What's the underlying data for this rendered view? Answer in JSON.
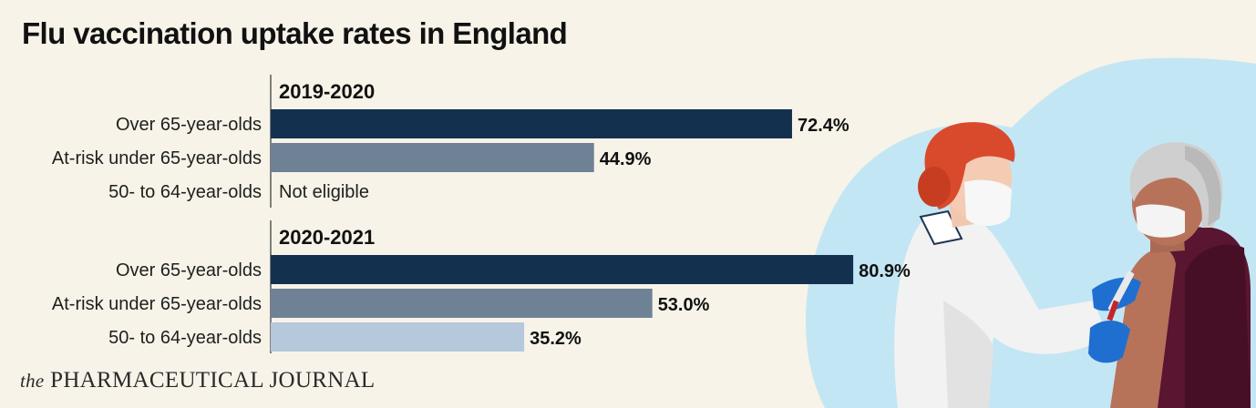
{
  "title": "Flu vaccination uptake rates in England",
  "brand": {
    "the": "the",
    "name": "PHARMACEUTICAL JOURNAL"
  },
  "illustration": {
    "icon": "nurse-vaccinating-patient-illustration"
  },
  "chart_data": {
    "type": "bar",
    "orientation": "horizontal",
    "title": "Flu vaccination uptake rates in England",
    "unit": "%",
    "categories": [
      "Over 65-year-olds",
      "At-risk under 65-year-olds",
      "50- to 64-year-olds"
    ],
    "colors": [
      "#14304f",
      "#6f8194",
      "#b5c8dc"
    ],
    "groups": [
      {
        "name": "2019-2020",
        "bars": [
          {
            "category": "Over 65-year-olds",
            "value": 72.4,
            "label": "72.4%"
          },
          {
            "category": "At-risk under 65-year-olds",
            "value": 44.9,
            "label": "44.9%"
          },
          {
            "category": "50- to 64-year-olds",
            "value": null,
            "label": "Not eligible"
          }
        ]
      },
      {
        "name": "2020-2021",
        "bars": [
          {
            "category": "Over 65-year-olds",
            "value": 80.9,
            "label": "80.9%"
          },
          {
            "category": "At-risk under 65-year-olds",
            "value": 53.0,
            "label": "53.0%"
          },
          {
            "category": "50- to 64-year-olds",
            "value": 35.2,
            "label": "35.2%"
          }
        ]
      }
    ]
  }
}
